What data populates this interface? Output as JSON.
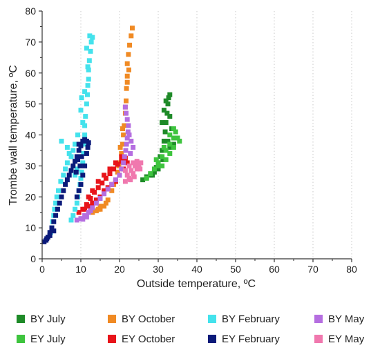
{
  "chart_data": {
    "type": "scatter",
    "title": "",
    "xlabel": "Outside temperature, ºC",
    "ylabel": "Trombe wall temperature, ºC",
    "xlim": [
      0,
      80
    ],
    "ylim": [
      0,
      80
    ],
    "xticks": [
      0,
      10,
      20,
      30,
      40,
      50,
      60,
      70,
      80
    ],
    "yticks": [
      0,
      10,
      20,
      30,
      40,
      50,
      60,
      70,
      80
    ],
    "grid": "vertical dotted",
    "legend_position": "bottom",
    "series": [
      {
        "name": "BY July",
        "color": "#1e8a28",
        "points": [
          [
            26,
            25.5
          ],
          [
            27,
            26.5
          ],
          [
            28,
            27
          ],
          [
            29,
            28
          ],
          [
            29.5,
            29.5
          ],
          [
            30,
            31
          ],
          [
            30.5,
            33
          ],
          [
            31,
            35
          ],
          [
            31.5,
            38
          ],
          [
            31.8,
            41
          ],
          [
            32,
            44
          ],
          [
            32.3,
            47
          ],
          [
            32.5,
            50
          ],
          [
            32.7,
            52
          ],
          [
            33,
            53
          ],
          [
            32,
            51
          ],
          [
            31.5,
            48
          ],
          [
            31,
            44
          ],
          [
            33,
            36
          ],
          [
            34,
            37
          ],
          [
            33,
            46
          ],
          [
            33.5,
            42
          ],
          [
            32.5,
            38
          ],
          [
            31.2,
            32
          ],
          [
            30,
            29
          ],
          [
            28.5,
            27
          ]
        ]
      },
      {
        "name": "EY July",
        "color": "#3ec43e",
        "points": [
          [
            27,
            26
          ],
          [
            28,
            27.5
          ],
          [
            29,
            29
          ],
          [
            30,
            31
          ],
          [
            31,
            33
          ],
          [
            32,
            35
          ],
          [
            33,
            37
          ],
          [
            34,
            39
          ],
          [
            34.5,
            41
          ],
          [
            35,
            39
          ],
          [
            35.5,
            38
          ],
          [
            34,
            36
          ],
          [
            33,
            34
          ],
          [
            32,
            32
          ],
          [
            31.5,
            36
          ],
          [
            33,
            40
          ],
          [
            34,
            42
          ],
          [
            30,
            30
          ],
          [
            29.5,
            32
          ],
          [
            31,
            30
          ]
        ]
      },
      {
        "name": "BY October",
        "color": "#f08a24",
        "points": [
          [
            13,
            15
          ],
          [
            14,
            15.5
          ],
          [
            15,
            16
          ],
          [
            16,
            17
          ],
          [
            17,
            19
          ],
          [
            18,
            22
          ],
          [
            19,
            25
          ],
          [
            19.5,
            28
          ],
          [
            20,
            31
          ],
          [
            20.5,
            34
          ],
          [
            20.8,
            37
          ],
          [
            21,
            40
          ],
          [
            21.2,
            43
          ],
          [
            21.5,
            47
          ],
          [
            21.7,
            51
          ],
          [
            21.8,
            55
          ],
          [
            22,
            59
          ],
          [
            22,
            63
          ],
          [
            22.3,
            66
          ],
          [
            22.6,
            69
          ],
          [
            23,
            72
          ],
          [
            23.3,
            74.5
          ],
          [
            22,
            57
          ],
          [
            21.5,
            49
          ],
          [
            20.8,
            42
          ],
          [
            19.8,
            30
          ],
          [
            18.5,
            24
          ],
          [
            16.5,
            18
          ],
          [
            15,
            17
          ],
          [
            14.5,
            16
          ],
          [
            20.2,
            36
          ],
          [
            22.4,
            61
          ]
        ]
      },
      {
        "name": "EY October",
        "color": "#e8141a",
        "points": [
          [
            9.5,
            15
          ],
          [
            10.5,
            16
          ],
          [
            11.5,
            17.5
          ],
          [
            12.5,
            19.5
          ],
          [
            13.5,
            21.5
          ],
          [
            14.5,
            23
          ],
          [
            15.5,
            24.5
          ],
          [
            16.5,
            26
          ],
          [
            17.5,
            27.5
          ],
          [
            18.5,
            29
          ],
          [
            19.5,
            30.5
          ],
          [
            20.5,
            31.5
          ],
          [
            21.5,
            32.5
          ],
          [
            22,
            31
          ],
          [
            21,
            29
          ],
          [
            20,
            27
          ],
          [
            19,
            25
          ],
          [
            18,
            24
          ],
          [
            17,
            23
          ],
          [
            16,
            22
          ],
          [
            15,
            20
          ],
          [
            14,
            19
          ],
          [
            13,
            18
          ],
          [
            12,
            17
          ],
          [
            11,
            16
          ],
          [
            20.5,
            33
          ],
          [
            19,
            31
          ],
          [
            17.5,
            29
          ],
          [
            16,
            27
          ],
          [
            14.5,
            25
          ],
          [
            13,
            22
          ],
          [
            12,
            20
          ]
        ]
      },
      {
        "name": "BY February",
        "color": "#44e2ec",
        "points": [
          [
            7.5,
            12.5
          ],
          [
            8,
            14
          ],
          [
            8.5,
            16
          ],
          [
            9,
            18
          ],
          [
            9.2,
            20
          ],
          [
            9.5,
            22
          ],
          [
            9.8,
            24
          ],
          [
            10,
            26
          ],
          [
            10.2,
            28
          ],
          [
            10.5,
            31
          ],
          [
            10.7,
            34
          ],
          [
            10.8,
            37
          ],
          [
            11,
            40
          ],
          [
            11,
            43
          ],
          [
            11.2,
            46
          ],
          [
            11.5,
            50
          ],
          [
            11.7,
            53
          ],
          [
            11.8,
            56
          ],
          [
            12,
            58
          ],
          [
            12,
            61
          ],
          [
            12.2,
            64
          ],
          [
            12.5,
            67
          ],
          [
            12.7,
            70
          ],
          [
            13,
            71.5
          ],
          [
            12.3,
            72
          ],
          [
            11.5,
            68
          ],
          [
            11.8,
            62
          ],
          [
            10.2,
            52
          ],
          [
            10,
            48
          ],
          [
            10.5,
            44
          ],
          [
            9.2,
            40
          ],
          [
            8.5,
            37
          ],
          [
            8,
            35
          ],
          [
            7.5,
            33
          ],
          [
            6.5,
            31
          ],
          [
            6,
            29
          ],
          [
            5.5,
            27
          ],
          [
            4.8,
            25
          ],
          [
            4.2,
            22
          ],
          [
            3.8,
            20
          ],
          [
            3.5,
            18
          ],
          [
            3.2,
            16
          ],
          [
            3,
            14
          ],
          [
            2.7,
            12
          ],
          [
            2.5,
            10
          ],
          [
            2.2,
            8.5
          ],
          [
            5,
            38
          ],
          [
            6.5,
            36
          ],
          [
            7,
            34
          ],
          [
            11,
            54
          ],
          [
            9,
            29
          ],
          [
            8.5,
            27
          ]
        ]
      },
      {
        "name": "EY February",
        "color": "#0b1a7a",
        "points": [
          [
            0.5,
            5.5
          ],
          [
            1,
            6
          ],
          [
            1.5,
            7
          ],
          [
            2,
            8.5
          ],
          [
            2.5,
            10
          ],
          [
            3,
            12
          ],
          [
            3.5,
            14
          ],
          [
            4,
            16
          ],
          [
            4.5,
            18
          ],
          [
            5,
            20
          ],
          [
            5.5,
            22
          ],
          [
            6,
            24
          ],
          [
            6.5,
            25.5
          ],
          [
            7,
            27
          ],
          [
            7.5,
            28.5
          ],
          [
            8,
            30
          ],
          [
            8.5,
            31.5
          ],
          [
            9,
            33
          ],
          [
            9.5,
            35
          ],
          [
            10,
            36.5
          ],
          [
            10.5,
            38
          ],
          [
            11,
            38.5
          ],
          [
            11.5,
            38
          ],
          [
            12,
            37.5
          ],
          [
            11.5,
            34
          ],
          [
            11,
            30
          ],
          [
            10.5,
            27
          ],
          [
            10,
            24
          ],
          [
            9.5,
            22
          ],
          [
            9,
            20
          ],
          [
            8.8,
            28
          ],
          [
            9.2,
            32
          ],
          [
            9.8,
            30
          ],
          [
            9.5,
            37
          ],
          [
            10.2,
            33
          ],
          [
            11.8,
            36
          ],
          [
            3,
            9
          ],
          [
            2,
            7.5
          ],
          [
            1.2,
            6.5
          ]
        ]
      },
      {
        "name": "BY May",
        "color": "#b56ee0",
        "points": [
          [
            9,
            12.5
          ],
          [
            10,
            13
          ],
          [
            11,
            14
          ],
          [
            12,
            15
          ],
          [
            13,
            16.5
          ],
          [
            14,
            18
          ],
          [
            15,
            19.5
          ],
          [
            16,
            21
          ],
          [
            17,
            22.5
          ],
          [
            18,
            24
          ],
          [
            19,
            25.5
          ],
          [
            20,
            27
          ],
          [
            20.5,
            29
          ],
          [
            21,
            31
          ],
          [
            21.3,
            33
          ],
          [
            21.6,
            35
          ],
          [
            21.8,
            37
          ],
          [
            22,
            39
          ],
          [
            22.2,
            41
          ],
          [
            22.3,
            43
          ],
          [
            22,
            45
          ],
          [
            21.7,
            47
          ],
          [
            21.5,
            49
          ],
          [
            22.5,
            40
          ],
          [
            23,
            38
          ],
          [
            23.5,
            36
          ],
          [
            22.8,
            34
          ],
          [
            11.5,
            13.5
          ],
          [
            10.5,
            12.8
          ],
          [
            12.5,
            15.5
          ]
        ]
      },
      {
        "name": "EY May",
        "color": "#f078ae",
        "points": [
          [
            21.5,
            25
          ],
          [
            22.5,
            26
          ],
          [
            23.5,
            27.5
          ],
          [
            24.5,
            29
          ],
          [
            25,
            30.5
          ],
          [
            25.5,
            31
          ],
          [
            24.5,
            31.5
          ],
          [
            23.5,
            31
          ],
          [
            22.5,
            30
          ],
          [
            21.5,
            28.5
          ],
          [
            22,
            27
          ],
          [
            23,
            28.5
          ],
          [
            24,
            30
          ],
          [
            25.3,
            29
          ],
          [
            22.8,
            25.5
          ],
          [
            23.8,
            26.5
          ]
        ]
      }
    ]
  }
}
